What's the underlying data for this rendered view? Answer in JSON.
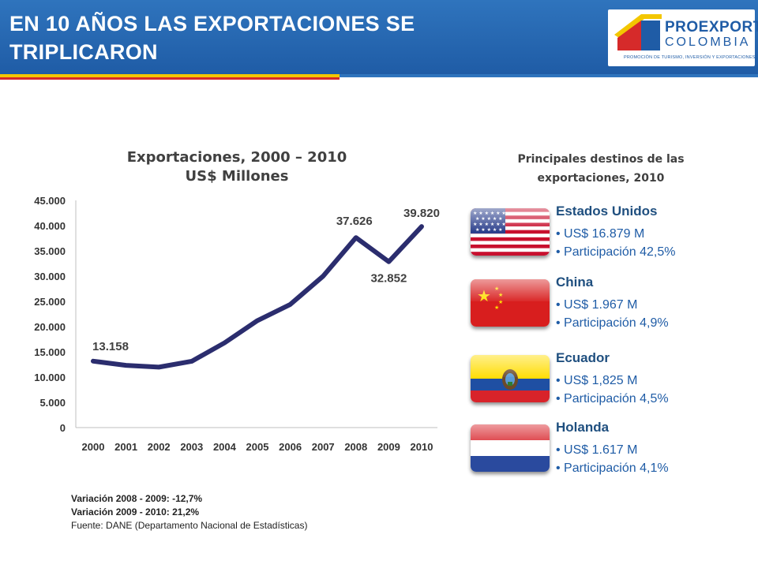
{
  "header": {
    "title_line1": "EN 10 AÑOS LAS EXPORTACIONES SE",
    "title_line2": "TRIPLICARON",
    "logo_line1": "PROEXPORT",
    "logo_line2": "COLOMBIA",
    "logo_tagline": "PROMOCIÓN DE TURISMO, INVERSIÓN Y EXPORTACIONES."
  },
  "chart_data": {
    "type": "line",
    "title_line1": "Exportaciones, 2000 – 2010",
    "title_line2": "US$ Millones",
    "categories": [
      "2000",
      "2001",
      "2002",
      "2003",
      "2004",
      "2005",
      "2006",
      "2007",
      "2008",
      "2009",
      "2010"
    ],
    "series": [
      {
        "values": [
          13158,
          12330,
          11975,
          13129,
          16788,
          21190,
          24391,
          29991,
          37626,
          32852,
          39820
        ]
      }
    ],
    "data_labels": [
      {
        "index": 0,
        "text": "13.158"
      },
      {
        "index": 8,
        "text": "37.626"
      },
      {
        "index": 9,
        "text": "32.852"
      },
      {
        "index": 10,
        "text": "39.820"
      }
    ],
    "ylim": [
      0,
      45000
    ],
    "yticks": [
      0,
      5000,
      10000,
      15000,
      20000,
      25000,
      30000,
      35000,
      40000,
      45000
    ],
    "ytick_labels": [
      "0",
      "5.000",
      "10.000",
      "15.000",
      "20.000",
      "25.000",
      "30.000",
      "35.000",
      "40.000",
      "45.000"
    ],
    "grid": false,
    "line_color": "#2b2d6e"
  },
  "notes": {
    "variation1": "Variación 2008 - 2009: -12,7%",
    "variation2": "Variación 2009 - 2010: 21,2%",
    "source": "Fuente: DANE (Departamento Nacional de Estadísticas)"
  },
  "destinations": {
    "title_line1": "Principales destinos de las",
    "title_line2": "exportaciones,  2010",
    "items": [
      {
        "name": "Estados Unidos",
        "flag": "usa-flag",
        "value": "• US$ 16.879 M",
        "share": "• Participación 42,5%"
      },
      {
        "name": "China",
        "flag": "china-flag",
        "value": "• US$ 1.967 M",
        "share": "• Participación 4,9%"
      },
      {
        "name": "Ecuador",
        "flag": "ecuador-flag",
        "value": "• US$ 1,825 M",
        "share": "• Participación 4,5%"
      },
      {
        "name": "Holanda",
        "flag": "netherlands-flag",
        "value": "• US$ 1.617 M",
        "share": "• Participación 4,1%"
      }
    ]
  }
}
